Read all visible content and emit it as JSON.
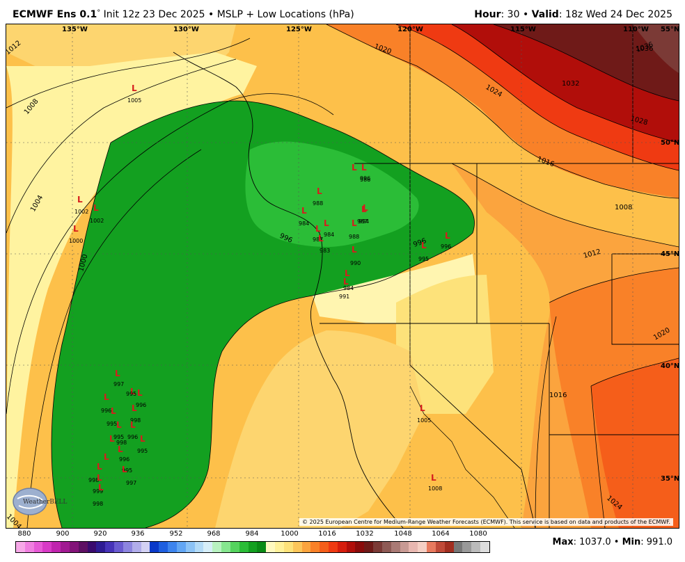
{
  "header": {
    "model": "ECMWF Ens 0.1",
    "degree": "°",
    "init": "Init 12z 23 Dec 2025",
    "sep": "•",
    "product": "MSLP + Low Locations (hPa)",
    "hour_label": "Hour",
    "hour_value": ": 30",
    "valid_label": "Valid",
    "valid_value": ": 18z Wed 24 Dec 2025"
  },
  "map": {
    "lon_labels": [
      "135°W",
      "130°W",
      "125°W",
      "120°W",
      "115°W",
      "110°W"
    ],
    "lat_labels": [
      "55°N",
      "50°N",
      "45°N",
      "40°N",
      "35°N"
    ],
    "isobars": [
      "1036",
      "1036",
      "1032",
      "1028",
      "1024",
      "1020",
      "1016",
      "1012",
      "1008",
      "1004",
      "1000",
      "996",
      "996",
      "1008",
      "1012",
      "1016",
      "1020",
      "1024",
      "1004"
    ],
    "lows": [
      {
        "label": "L",
        "value": "1005"
      },
      {
        "label": "L",
        "value": "1002"
      },
      {
        "label": "L",
        "value": "1002"
      },
      {
        "label": "L",
        "value": "1000"
      },
      {
        "label": "L",
        "value": "984"
      },
      {
        "label": "L",
        "value": "988"
      },
      {
        "label": "L",
        "value": "986"
      },
      {
        "label": "L",
        "value": "984"
      },
      {
        "label": "L",
        "value": "987"
      },
      {
        "label": "L",
        "value": "983"
      },
      {
        "label": "L",
        "value": "988"
      },
      {
        "label": "L",
        "value": "987"
      },
      {
        "label": "L",
        "value": "990"
      },
      {
        "label": "L",
        "value": "984"
      },
      {
        "label": "L",
        "value": "991"
      },
      {
        "label": "L",
        "value": "996"
      },
      {
        "label": "L",
        "value": "995"
      },
      {
        "label": "L",
        "value": "996"
      },
      {
        "label": "L",
        "value": "994"
      },
      {
        "label": "L",
        "value": "997"
      },
      {
        "label": "L",
        "value": "995"
      },
      {
        "label": "L",
        "value": "996"
      },
      {
        "label": "L",
        "value": "996"
      },
      {
        "label": "L",
        "value": "995"
      },
      {
        "label": "L",
        "value": "998"
      },
      {
        "label": "L",
        "value": "995"
      },
      {
        "label": "L",
        "value": "996"
      },
      {
        "label": "L",
        "value": "995"
      },
      {
        "label": "L",
        "value": "998"
      },
      {
        "label": "L",
        "value": "996"
      },
      {
        "label": "L",
        "value": "995"
      },
      {
        "label": "L",
        "value": "997"
      },
      {
        "label": "L",
        "value": "998"
      },
      {
        "label": "L",
        "value": "999"
      },
      {
        "label": "L",
        "value": "998"
      },
      {
        "label": "L",
        "value": "1005"
      },
      {
        "label": "L",
        "value": "1008"
      }
    ]
  },
  "copyright": "© 2025 European Centre for Medium-Range Weather Forecasts (ECMWF). This service is based on data and products of the ECMWF.",
  "logo_text": "WeatherBELL",
  "colorbar": {
    "labels": [
      "880",
      "900",
      "920",
      "936",
      "952",
      "968",
      "984",
      "1000",
      "1016",
      "1032",
      "1048",
      "1064",
      "1080"
    ],
    "colors": [
      "#f7a8e8",
      "#f07fe0",
      "#e75ad6",
      "#d83ac6",
      "#c024ae",
      "#a11a92",
      "#831379",
      "#5e0f63",
      "#3a0a6e",
      "#2f1b93",
      "#4733b8",
      "#6a5bd0",
      "#8d85df",
      "#b1adea",
      "#d3d1f3",
      "#0a39c9",
      "#1e5fe0",
      "#3d84ee",
      "#62a6f4",
      "#8cc3f6",
      "#b3dbf7",
      "#d6eef8",
      "#b8f2c0",
      "#86e68f",
      "#55d35e",
      "#2bbd37",
      "#13a020",
      "#0a8a16",
      "#fff9c0",
      "#fff19a",
      "#fde27a",
      "#fcc65a",
      "#fba43e",
      "#f98128",
      "#f55e1a",
      "#ef3a12",
      "#d61d0d",
      "#b10e0a",
      "#8a0b0b",
      "#6f1a18",
      "#7b3a36",
      "#8e5a55",
      "#a97a75",
      "#c89a94",
      "#e8b7b0",
      "#f5cfc4",
      "#e87a5e",
      "#c04a38",
      "#a12e20",
      "#777777",
      "#999999",
      "#bbbbbb",
      "#dddddd"
    ]
  },
  "maxmin": {
    "max_label": "Max",
    "max_value": ": 1037.0",
    "sep": "•",
    "min_label": "Min",
    "min_value": ": 991.0"
  }
}
